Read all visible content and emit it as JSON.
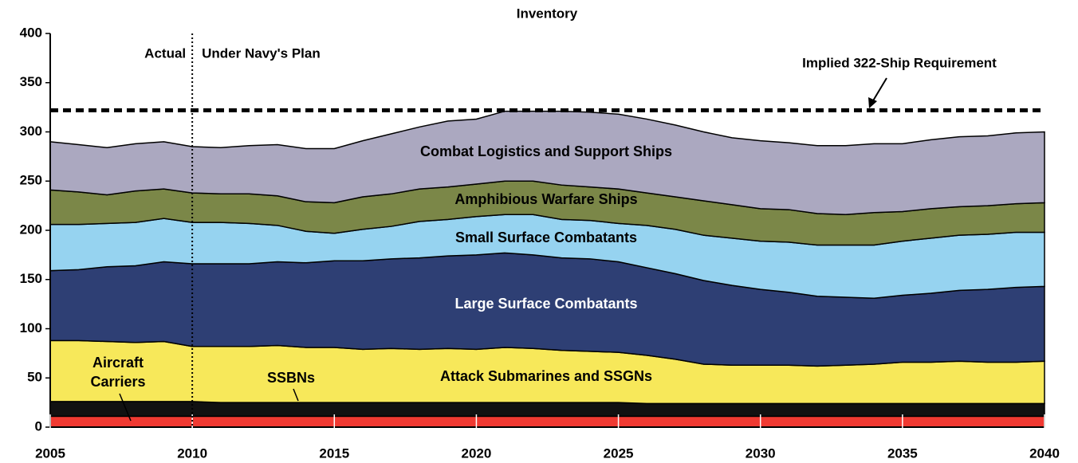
{
  "chart_data": {
    "type": "stacked_area",
    "title": "Inventory",
    "x": [
      2005,
      2006,
      2007,
      2008,
      2009,
      2010,
      2011,
      2012,
      2013,
      2014,
      2015,
      2016,
      2017,
      2018,
      2019,
      2020,
      2021,
      2022,
      2023,
      2024,
      2025,
      2026,
      2027,
      2028,
      2029,
      2030,
      2031,
      2032,
      2033,
      2034,
      2035,
      2036,
      2037,
      2038,
      2039,
      2040
    ],
    "series": [
      {
        "name": "Aircraft Carriers",
        "color": "#f03a32",
        "values": [
          11,
          11,
          11,
          11,
          11,
          11,
          11,
          11,
          11,
          11,
          11,
          11,
          11,
          11,
          11,
          11,
          11,
          11,
          11,
          11,
          11,
          11,
          11,
          11,
          11,
          11,
          11,
          11,
          11,
          11,
          11,
          11,
          11,
          11,
          11,
          11
        ]
      },
      {
        "name": "SSBNs",
        "color": "#111111",
        "values": [
          15,
          15,
          15,
          15,
          15,
          15,
          14,
          14,
          14,
          14,
          14,
          14,
          14,
          14,
          14,
          14,
          14,
          14,
          14,
          14,
          14,
          13,
          13,
          13,
          13,
          13,
          13,
          13,
          13,
          13,
          13,
          13,
          13,
          13,
          13,
          13
        ]
      },
      {
        "name": "Attack Submarines and SSGNs",
        "color": "#f7e85a",
        "values": [
          62,
          62,
          61,
          60,
          61,
          56,
          57,
          57,
          58,
          56,
          56,
          54,
          55,
          54,
          55,
          54,
          56,
          55,
          53,
          52,
          51,
          49,
          45,
          40,
          39,
          39,
          39,
          38,
          39,
          40,
          42,
          42,
          43,
          42,
          42,
          43
        ]
      },
      {
        "name": "Large Surface Combatants",
        "color": "#2e3f74",
        "values": [
          71,
          72,
          76,
          78,
          81,
          84,
          84,
          84,
          85,
          86,
          88,
          90,
          91,
          93,
          94,
          96,
          96,
          95,
          94,
          94,
          92,
          89,
          87,
          85,
          81,
          77,
          74,
          71,
          69,
          67,
          68,
          70,
          72,
          74,
          76,
          76
        ]
      },
      {
        "name": "Small Surface Combatants",
        "color": "#96d3f0",
        "values": [
          47,
          46,
          44,
          44,
          44,
          42,
          42,
          41,
          37,
          32,
          28,
          32,
          33,
          37,
          37,
          39,
          39,
          41,
          39,
          39,
          39,
          43,
          45,
          46,
          48,
          49,
          51,
          52,
          53,
          54,
          55,
          56,
          56,
          56,
          56,
          55
        ]
      },
      {
        "name": "Amphibious Warfare Ships",
        "color": "#7b8748",
        "values": [
          35,
          33,
          29,
          32,
          30,
          30,
          29,
          30,
          30,
          30,
          31,
          33,
          33,
          33,
          33,
          33,
          34,
          34,
          35,
          34,
          35,
          33,
          33,
          35,
          34,
          33,
          33,
          32,
          31,
          33,
          30,
          30,
          29,
          29,
          29,
          30
        ]
      },
      {
        "name": "Combat Logistics and Support Ships",
        "color": "#aba8c0",
        "values": [
          49,
          48,
          48,
          48,
          48,
          47,
          47,
          49,
          52,
          54,
          55,
          57,
          61,
          63,
          67,
          66,
          71,
          71,
          75,
          76,
          76,
          75,
          73,
          70,
          68,
          69,
          68,
          69,
          70,
          70,
          69,
          70,
          71,
          71,
          72,
          72
        ]
      }
    ],
    "xlim": [
      2005,
      2040
    ],
    "xticks": [
      2005,
      2010,
      2015,
      2020,
      2025,
      2030,
      2035,
      2040
    ],
    "ylim": [
      0,
      400
    ],
    "yticks": [
      0,
      50,
      100,
      150,
      200,
      250,
      300,
      350,
      400
    ],
    "requirement": {
      "value": 322,
      "label": "Implied 322-Ship Requirement"
    },
    "divider": {
      "x": 2010,
      "left_label": "Actual",
      "right_label": "Under Navy's Plan"
    }
  }
}
